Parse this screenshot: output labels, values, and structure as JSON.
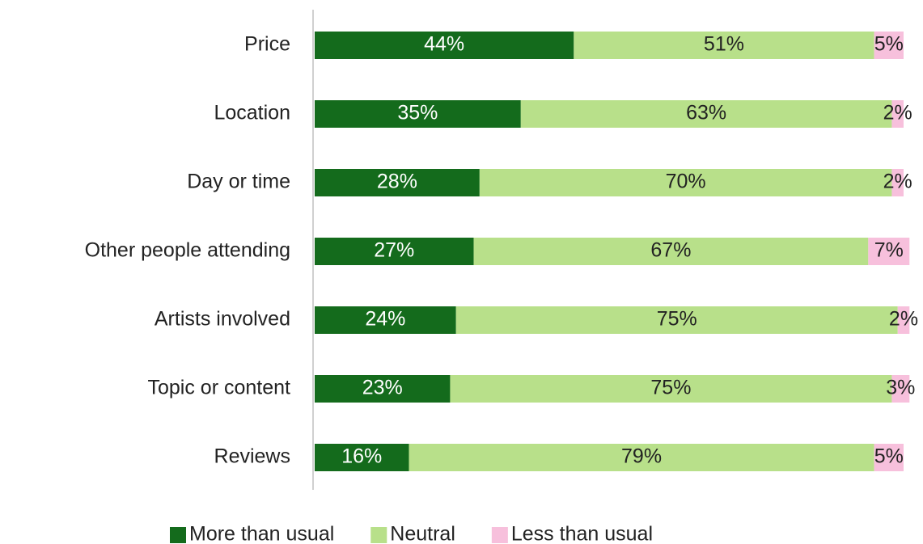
{
  "chart_data": {
    "type": "stacked-bar-horizontal",
    "categories": [
      "Price",
      "Location",
      "Day or time",
      "Other people attending",
      "Artists involved",
      "Topic or content",
      "Reviews"
    ],
    "series": [
      {
        "name": "More than usual",
        "color": "#146b1c",
        "label_color": "#ffffff",
        "values": [
          44,
          35,
          28,
          27,
          24,
          23,
          16
        ],
        "value_labels": [
          "44%",
          "35%",
          "28%",
          "27%",
          "24%",
          "23%",
          "16%"
        ]
      },
      {
        "name": "Neutral",
        "color": "#b8e08a",
        "label_color": "#222222",
        "values": [
          51,
          63,
          70,
          67,
          75,
          75,
          79
        ],
        "value_labels": [
          "51%",
          "63%",
          "70%",
          "67%",
          "75%",
          "75%",
          "79%"
        ]
      },
      {
        "name": "Less than usual",
        "color": "#f7c0dc",
        "label_color": "#222222",
        "values": [
          5,
          2,
          2,
          7,
          2,
          3,
          5
        ],
        "value_labels": [
          "5%",
          "2%",
          "2%",
          "7%",
          "2%",
          "3%",
          "5%"
        ]
      }
    ],
    "legend": "bottom"
  }
}
